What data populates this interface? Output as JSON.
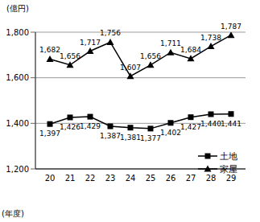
{
  "chart_data": {
    "type": "line",
    "y_label": "(億円)",
    "x_label": "(年度)",
    "categories": [
      "20",
      "21",
      "22",
      "23",
      "24",
      "25",
      "26",
      "27",
      "28",
      "29"
    ],
    "series": [
      {
        "name": "土地",
        "color": "#000000",
        "marker": "square",
        "values": [
          1397,
          1426,
          1429,
          1387,
          1381,
          1377,
          1402,
          1427,
          1440,
          1441
        ],
        "value_labels": [
          "1,397",
          "1,426",
          "1,429",
          "1,387",
          "1,381",
          "1,377",
          "1,402",
          "1,427",
          "1,440",
          "1,441"
        ]
      },
      {
        "name": "家屋",
        "color": "#000000",
        "marker": "triangle",
        "values": [
          1682,
          1656,
          1717,
          1756,
          1607,
          1656,
          1711,
          1684,
          1738,
          1787
        ],
        "value_labels": [
          "1,682",
          "1,656",
          "1,717",
          "1,756",
          "1,607",
          "1,656",
          "1,711",
          "1,684",
          "1,738",
          "1,787"
        ]
      }
    ],
    "ylim": [
      1200,
      1800
    ],
    "yticks": [
      {
        "value": 1200,
        "label": "1,200"
      },
      {
        "value": 1400,
        "label": "1,400"
      },
      {
        "value": 1600,
        "label": "1,600"
      },
      {
        "value": 1800,
        "label": "1,800"
      }
    ],
    "grid": true,
    "data_labels": true,
    "legend": "right"
  }
}
